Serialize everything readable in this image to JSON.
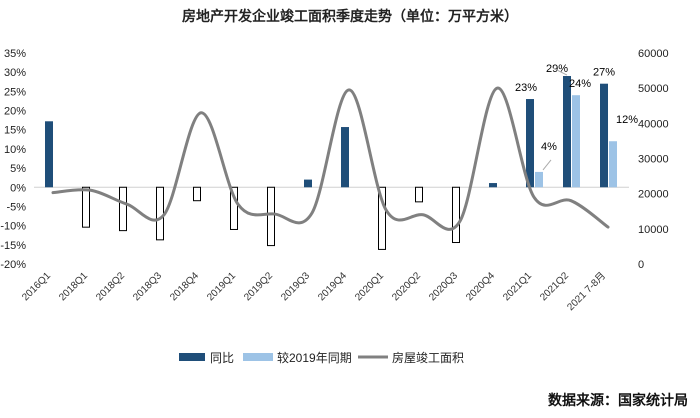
{
  "chart_data": {
    "type": "bar+line",
    "title": "房地产开发企业竣工面积季度走势（单位：万平方米）",
    "categories": [
      "2016Q1",
      "2018Q1",
      "2018Q2",
      "2018Q3",
      "2018Q4",
      "2019Q1",
      "2019Q2",
      "2019Q3",
      "2019Q4",
      "2020Q1",
      "2020Q2",
      "2020Q3",
      "2020Q4",
      "2021Q1",
      "2021Q2",
      "2021 7-8月"
    ],
    "series": [
      {
        "name": "同比",
        "type": "bar",
        "axis": "left",
        "color": "#1f4e79",
        "values": [
          17.2,
          -10.4,
          -11.3,
          -13.7,
          -3.5,
          -11,
          -15.2,
          2,
          15.7,
          -16.2,
          -3.8,
          -14.4,
          1.1,
          23,
          29,
          27
        ],
        "labels": [
          null,
          null,
          null,
          null,
          null,
          null,
          null,
          null,
          null,
          null,
          null,
          null,
          null,
          "23%",
          "29%",
          "27%"
        ]
      },
      {
        "name": "较2019年同期",
        "type": "bar",
        "axis": "left",
        "color": "#9dc3e6",
        "values": [
          null,
          null,
          null,
          null,
          null,
          null,
          null,
          null,
          null,
          null,
          null,
          null,
          null,
          4,
          24,
          12
        ],
        "labels": [
          null,
          null,
          null,
          null,
          null,
          null,
          null,
          null,
          null,
          null,
          null,
          null,
          null,
          "4%",
          "24%",
          "12%"
        ]
      },
      {
        "name": "房屋竣工面积",
        "type": "line",
        "axis": "right",
        "color": "#808080",
        "values": [
          20300,
          21000,
          17000,
          14000,
          43000,
          17000,
          14200,
          14500,
          49500,
          15400,
          14000,
          12200,
          50000,
          19000,
          18000,
          10500
        ]
      }
    ],
    "left_axis": {
      "ylim": [
        -20,
        35
      ],
      "ticks": [
        "-20%",
        "-15%",
        "-10%",
        "-5%",
        "0%",
        "5%",
        "10%",
        "15%",
        "20%",
        "25%",
        "30%",
        "35%"
      ]
    },
    "right_axis": {
      "ylim": [
        0,
        60000
      ],
      "ticks": [
        "0",
        "10000",
        "20000",
        "30000",
        "40000",
        "50000",
        "60000"
      ]
    },
    "legend": [
      "同比",
      "较2019年同期",
      "房屋竣工面积"
    ],
    "legend_position": "bottom"
  },
  "source": "数据来源：国家统计局"
}
